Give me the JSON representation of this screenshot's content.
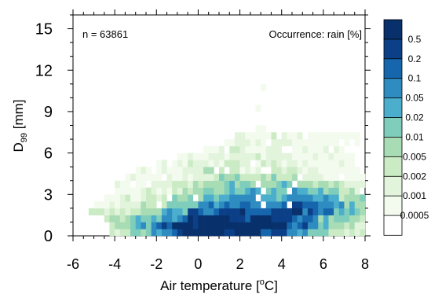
{
  "chart_data": {
    "type": "heatmap",
    "xlabel_text": "Air temperature [",
    "xlabel_sup": "o",
    "xlabel_end": "C]",
    "ylabel_main": "D",
    "ylabel_sub": "99",
    "ylabel_end": " [mm]",
    "annotation_left": "n = 63861",
    "annotation_right": "Occurrence: rain [%]",
    "xlim": [
      -6,
      8
    ],
    "ylim": [
      0,
      16
    ],
    "xticks": [
      -6,
      -4,
      -2,
      0,
      2,
      4,
      6,
      8
    ],
    "yticks": [
      0,
      3,
      6,
      9,
      12,
      15
    ],
    "grid": false,
    "bin_width_x": 0.25,
    "bin_height_y": 0.5,
    "colorbar": {
      "labels": [
        "0.5",
        "0.2",
        "0.1",
        "0.05",
        "0.02",
        "0.01",
        "0.005",
        "0.002",
        "0.001",
        "0.0005"
      ],
      "colors": [
        "#08306b",
        "#0b3f87",
        "#1566ad",
        "#2f8cc0",
        "#4baecd",
        "#7fcdbb",
        "#a8dcb4",
        "#cbebc5",
        "#e3f4dc",
        "#f3fbee",
        "#ffffff"
      ]
    },
    "row_profile": [
      {
        "y": 0.25,
        "x_range": [
          -4.25,
          7.9
        ],
        "peak_x": 1.5,
        "levels": [
          2,
          3,
          5,
          7,
          9,
          10,
          10
        ]
      },
      {
        "y": 0.75,
        "x_range": [
          -4.25,
          7.9
        ],
        "peak_x": 1.5,
        "levels": [
          3,
          4,
          6,
          8,
          10,
          10,
          10
        ]
      },
      {
        "y": 1.25,
        "x_range": [
          -4.5,
          7.9
        ],
        "peak_x": 2.0,
        "levels": [
          3,
          4,
          5,
          7,
          9,
          10,
          9
        ]
      },
      {
        "y": 1.75,
        "x_range": [
          -5.25,
          7.9
        ],
        "peak_x": 3.0,
        "levels": [
          2,
          3,
          4,
          6,
          8,
          9,
          8
        ]
      },
      {
        "y": 2.25,
        "x_range": [
          -5.0,
          7.9
        ],
        "peak_x": 3.5,
        "levels": [
          1,
          2,
          3,
          5,
          7,
          8,
          7
        ]
      },
      {
        "y": 2.75,
        "x_range": [
          -4.5,
          7.9
        ],
        "peak_x": 3.5,
        "levels": [
          1,
          2,
          3,
          4,
          6,
          7,
          6
        ]
      },
      {
        "y": 3.25,
        "x_range": [
          -4.5,
          7.9
        ],
        "peak_x": 3.5,
        "levels": [
          1,
          1,
          2,
          3,
          5,
          6,
          5
        ]
      },
      {
        "y": 3.75,
        "x_range": [
          -4.0,
          7.9
        ],
        "peak_x": 3.0,
        "levels": [
          1,
          1,
          2,
          3,
          4,
          5,
          4
        ]
      },
      {
        "y": 4.25,
        "x_range": [
          -3.5,
          7.9
        ],
        "peak_x": 2.5,
        "levels": [
          1,
          1,
          1,
          2,
          3,
          4,
          3
        ]
      },
      {
        "y": 4.75,
        "x_range": [
          -3.0,
          7.6
        ],
        "peak_x": 2.5,
        "levels": [
          1,
          1,
          1,
          2,
          3,
          3,
          2
        ]
      },
      {
        "y": 5.25,
        "x_range": [
          -2.0,
          7.5
        ],
        "peak_x": 2.5,
        "levels": [
          1,
          1,
          1,
          2,
          2,
          3,
          2
        ]
      },
      {
        "y": 5.75,
        "x_range": [
          -1.0,
          7.5
        ],
        "peak_x": 2.5,
        "levels": [
          1,
          1,
          1,
          1,
          2,
          2,
          2
        ]
      },
      {
        "y": 6.25,
        "x_range": [
          0.25,
          7.0
        ],
        "peak_x": 2.5,
        "levels": [
          1,
          1,
          1,
          1,
          2,
          2,
          1
        ]
      },
      {
        "y": 6.75,
        "x_range": [
          1.25,
          7.75
        ],
        "peak_x": 3.0,
        "levels": [
          1,
          1,
          1,
          1,
          1,
          2,
          1
        ]
      },
      {
        "y": 7.25,
        "x_range": [
          1.75,
          7.75
        ],
        "peak_x": 3.0,
        "levels": [
          1,
          1,
          1,
          1,
          1,
          2,
          1
        ]
      },
      {
        "y": 7.75,
        "x_range": [
          2.75,
          3.25
        ],
        "peak_x": 3.0,
        "levels": [
          1,
          1,
          1,
          1,
          1,
          1,
          1
        ]
      },
      {
        "y": 9.25,
        "x_range": [
          2.75,
          3.25
        ],
        "peak_x": 3.0,
        "levels": [
          1,
          1,
          1,
          1,
          1,
          1,
          1
        ]
      },
      {
        "y": 10.75,
        "x_range": [
          3.0,
          3.25
        ],
        "peak_x": 3.0,
        "levels": [
          1,
          1,
          1,
          1,
          1,
          1,
          1
        ]
      }
    ]
  }
}
